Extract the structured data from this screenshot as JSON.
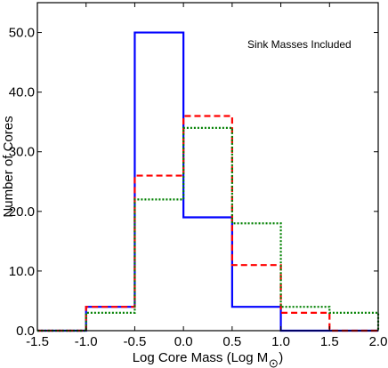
{
  "chart_data": {
    "type": "line",
    "plot_style": "step histogram",
    "xlabel": "Log Core Mass (Log M",
    "xlabel_suffix": ")",
    "xlabel_symbol": "sun-symbol",
    "ylabel": "Number of Cores",
    "annotation": "Sink Masses Included",
    "xlim": [
      -1.5,
      2.0
    ],
    "ylim": [
      0,
      55
    ],
    "x_ticks": [
      -1.5,
      -1.0,
      -0.5,
      0.0,
      0.5,
      1.0,
      1.5,
      2.0
    ],
    "x_tick_labels": [
      "-1.5",
      "-1.0",
      "-0.5",
      "0.0",
      "0.5",
      "1.0",
      "1.5",
      "2.0"
    ],
    "y_ticks": [
      0,
      10,
      20,
      30,
      40,
      50
    ],
    "y_tick_labels": [
      "0.0",
      "10.0",
      "20.0",
      "30.0",
      "40.0",
      "50.0"
    ],
    "grid": false,
    "bin_edges": [
      -1.5,
      -1.0,
      -0.5,
      0.0,
      0.5,
      1.0,
      1.5,
      2.0
    ],
    "series": [
      {
        "style": "solid",
        "color": "#0000ff",
        "values": [
          0,
          4,
          50,
          19,
          4,
          0,
          0
        ]
      },
      {
        "style": "dashed",
        "color": "#ff0000",
        "values": [
          0,
          4,
          26,
          36,
          11,
          3,
          0
        ]
      },
      {
        "style": "dotted",
        "color": "#008000",
        "values": [
          0,
          3,
          22,
          34,
          18,
          4,
          3
        ]
      }
    ]
  }
}
